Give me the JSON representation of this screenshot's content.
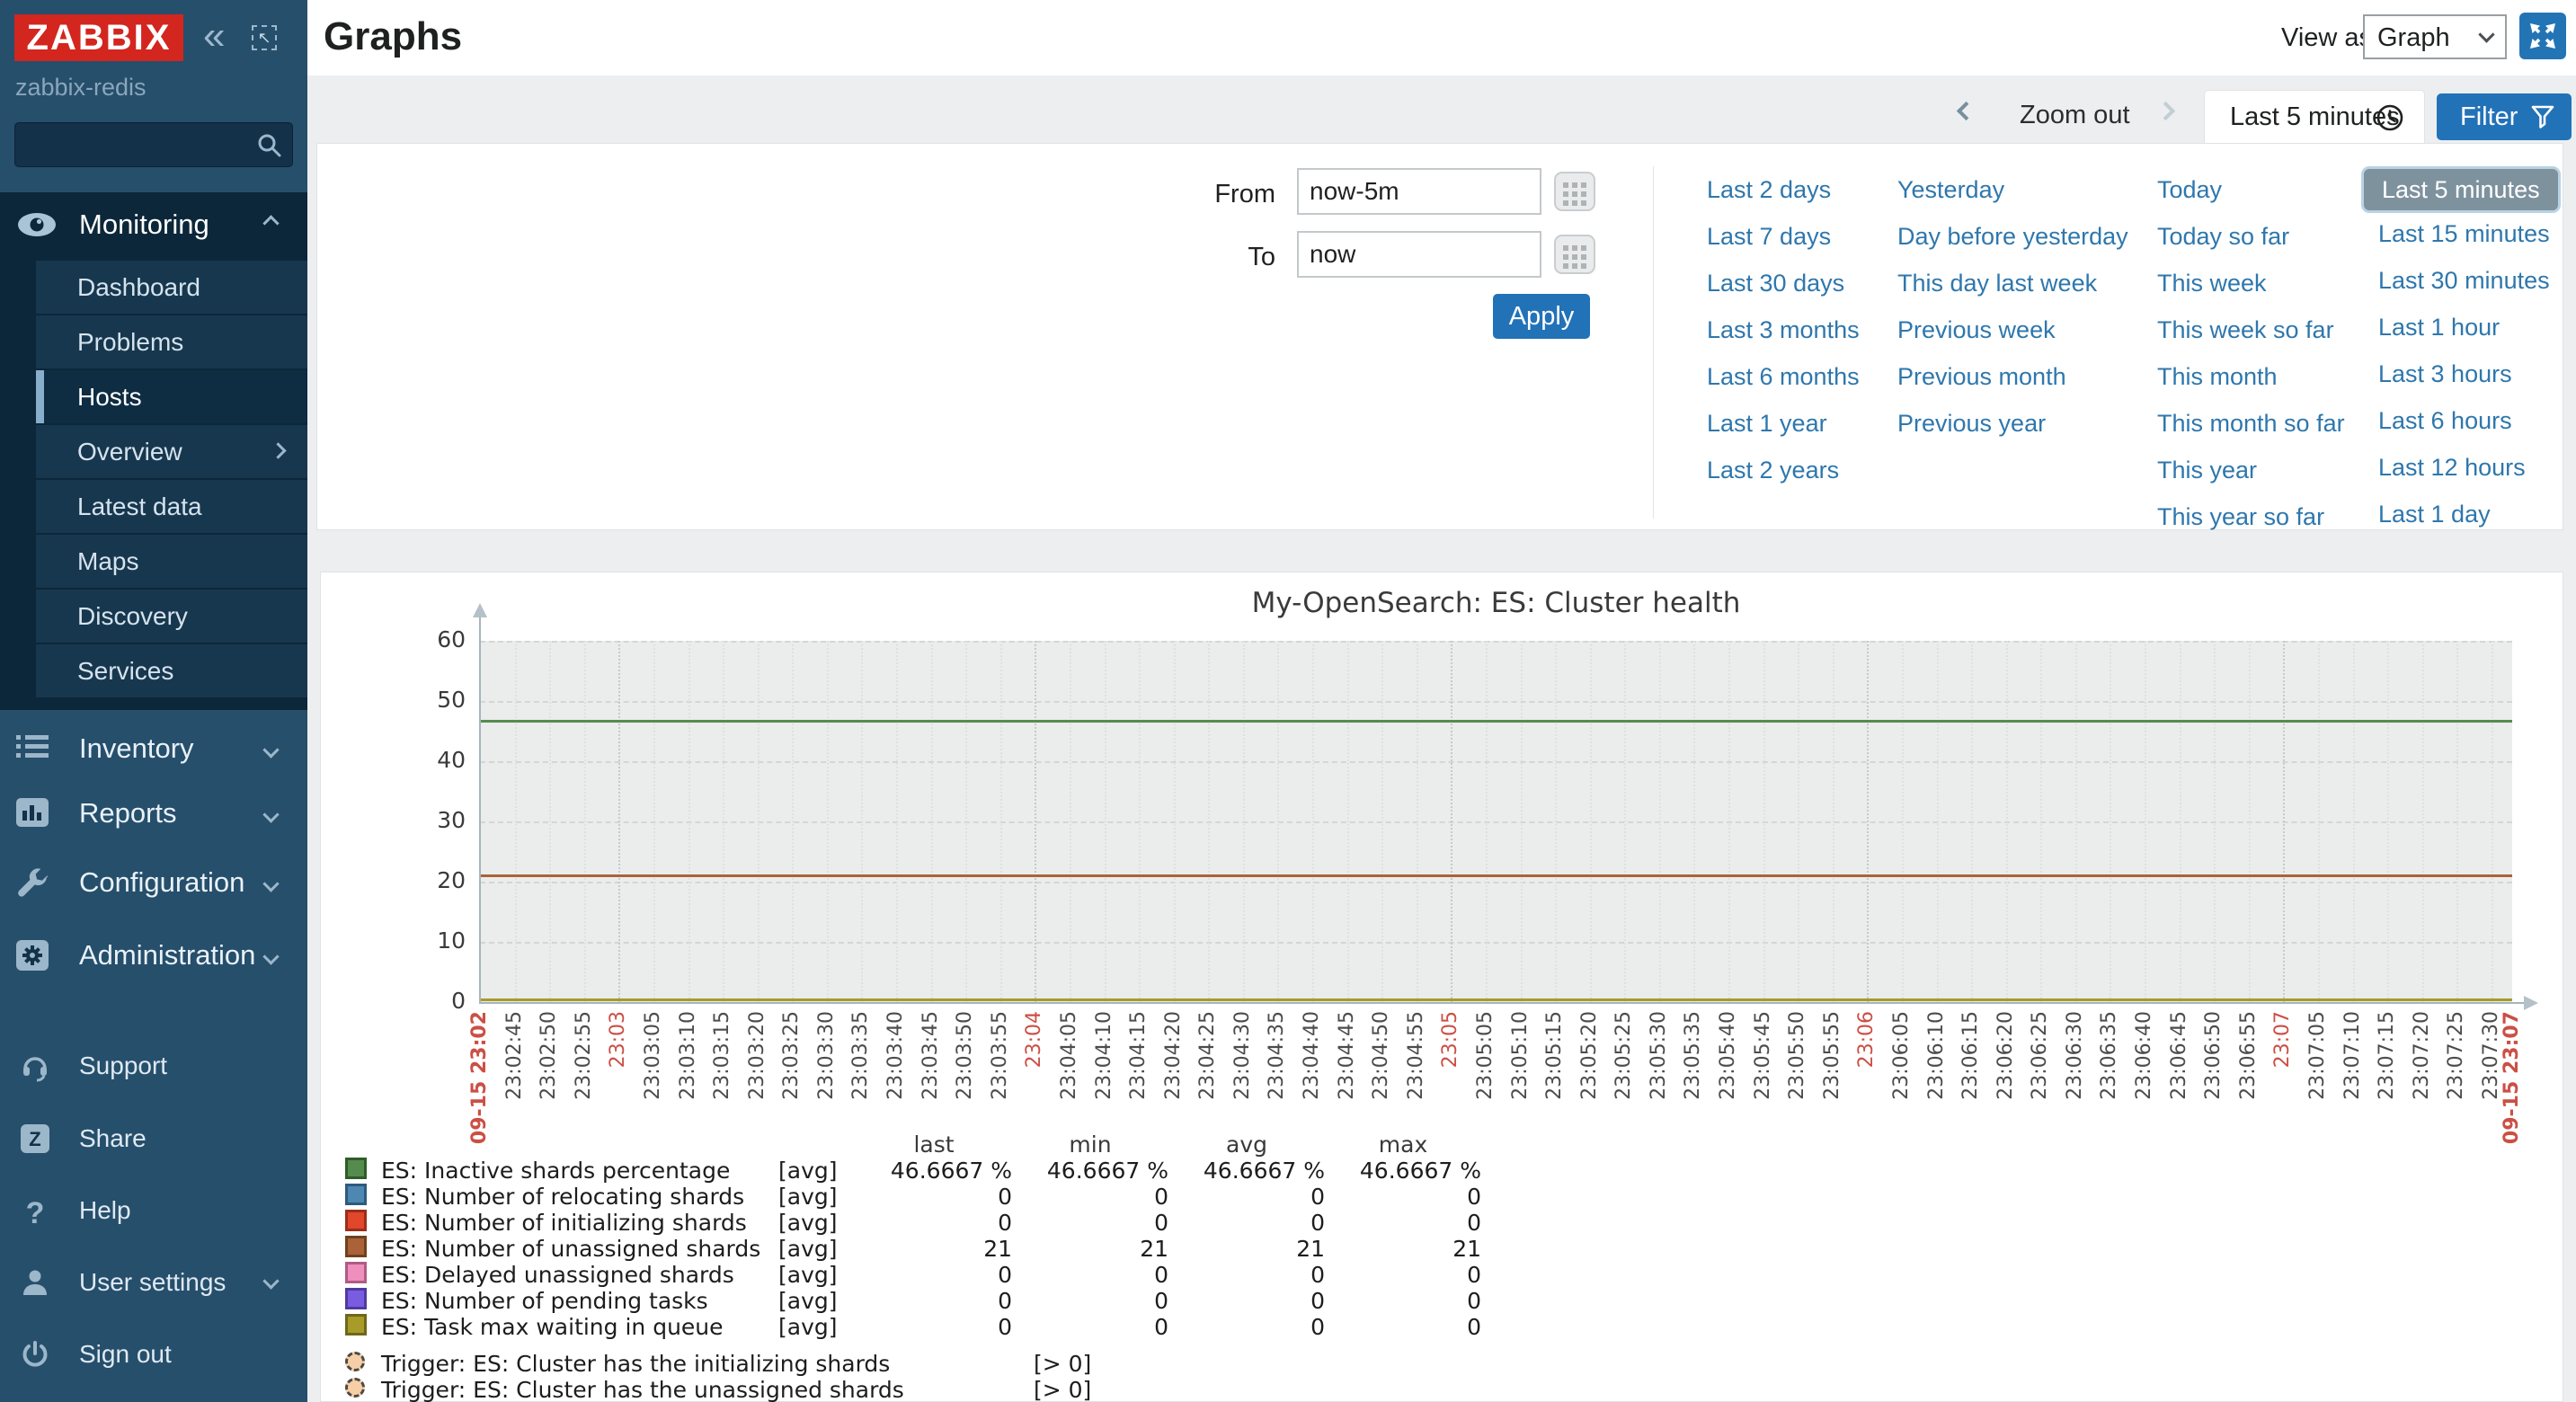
{
  "sidebar": {
    "logo_text": "ZABBIX",
    "host_label": "zabbix-redis",
    "search_value": "",
    "icons": {
      "collapse_glyph": "«",
      "popout_glyph": "↖",
      "help_glyph": "?"
    },
    "monitoring": {
      "label": "Monitoring",
      "items": [
        {
          "label": "Dashboard"
        },
        {
          "label": "Problems"
        },
        {
          "label": "Hosts",
          "active": true
        },
        {
          "label": "Overview",
          "has_children": true
        },
        {
          "label": "Latest data"
        },
        {
          "label": "Maps"
        },
        {
          "label": "Discovery"
        },
        {
          "label": "Services"
        }
      ]
    },
    "sections": [
      {
        "label": "Inventory"
      },
      {
        "label": "Reports"
      },
      {
        "label": "Configuration"
      },
      {
        "label": "Administration"
      }
    ],
    "footer": [
      {
        "label": "Support"
      },
      {
        "label": "Share"
      },
      {
        "label": "Help"
      },
      {
        "label": "User settings",
        "has_children": true
      },
      {
        "label": "Sign out"
      }
    ]
  },
  "header": {
    "title": "Graphs",
    "view_as_label": "View as",
    "view_as_value": "Graph"
  },
  "toolbar": {
    "zoom_out_label": "Zoom out",
    "range_tab_label": "Last 5 minutes",
    "filter_button_label": "Filter"
  },
  "time_form": {
    "from_label": "From",
    "from_value": "now-5m",
    "to_label": "To",
    "to_value": "now",
    "apply_label": "Apply"
  },
  "quick_ranges": {
    "selected": "Last 5 minutes",
    "columns": [
      [
        "Last 2 days",
        "Last 7 days",
        "Last 30 days",
        "Last 3 months",
        "Last 6 months",
        "Last 1 year",
        "Last 2 years"
      ],
      [
        "Yesterday",
        "Day before yesterday",
        "This day last week",
        "Previous week",
        "Previous month",
        "Previous year"
      ],
      [
        "Today",
        "Today so far",
        "This week",
        "This week so far",
        "This month",
        "This month so far",
        "This year",
        "This year so far"
      ],
      [
        "Last 5 minutes",
        "Last 15 minutes",
        "Last 30 minutes",
        "Last 1 hour",
        "Last 3 hours",
        "Last 6 hours",
        "Last 12 hours",
        "Last 1 day"
      ]
    ]
  },
  "chart_data": {
    "type": "line",
    "title": "My-OpenSearch: ES: Cluster health",
    "xlabel": "",
    "ylabel": "",
    "ylim": [
      0,
      60
    ],
    "yticks": [
      0,
      10,
      20,
      30,
      40,
      50,
      60
    ],
    "grid": true,
    "legend_position": "bottom",
    "legend_headers": [
      "last",
      "min",
      "avg",
      "max"
    ],
    "series": [
      {
        "name": "ES: Inactive shards percentage",
        "color": "#568b4e",
        "border": "#2e5c28",
        "fn": "[avg]",
        "value": 46.6667,
        "last": "46.6667 %",
        "min": "46.6667 %",
        "avg": "46.6667 %",
        "max": "46.6667 %"
      },
      {
        "name": "ES: Number of relocating shards",
        "color": "#4d87b2",
        "border": "#2e5a7c",
        "fn": "[avg]",
        "value": 0,
        "last": "0",
        "min": "0",
        "avg": "0",
        "max": "0"
      },
      {
        "name": "ES: Number of initializing shards",
        "color": "#e0472b",
        "border": "#9c2e1a",
        "fn": "[avg]",
        "value": 0,
        "last": "0",
        "min": "0",
        "avg": "0",
        "max": "0"
      },
      {
        "name": "ES: Number of unassigned shards",
        "color": "#ab6239",
        "border": "#6e421c",
        "fn": "[avg]",
        "value": 21,
        "last": "21",
        "min": "21",
        "avg": "21",
        "max": "21"
      },
      {
        "name": "ES: Delayed unassigned shards",
        "color": "#ef8fbe",
        "border": "#b05a84",
        "fn": "[avg]",
        "value": 0,
        "last": "0",
        "min": "0",
        "avg": "0",
        "max": "0"
      },
      {
        "name": "ES: Number of pending tasks",
        "color": "#7a5ce0",
        "border": "#4f3aa0",
        "fn": "[avg]",
        "value": 0,
        "last": "0",
        "min": "0",
        "avg": "0",
        "max": "0"
      },
      {
        "name": "ES: Task max waiting in queue",
        "color": "#a79b2a",
        "border": "#6f6718",
        "fn": "[avg]",
        "value": 0,
        "last": "0",
        "min": "0",
        "avg": "0",
        "max": "0"
      }
    ],
    "trigger_marker_color": "#f6cfa6",
    "triggers": [
      {
        "label": "Trigger: ES: Cluster has the initializing shards",
        "condition": "[> 0]"
      },
      {
        "label": "Trigger: ES: Cluster has the unassigned shards",
        "condition": "[> 0]"
      }
    ],
    "xticks": [
      {
        "t": 0,
        "label": "09-15 23:02",
        "red": true,
        "endpoint": true
      },
      {
        "t": 5,
        "label": "23:02:45"
      },
      {
        "t": 10,
        "label": "23:02:50"
      },
      {
        "t": 15,
        "label": "23:02:55"
      },
      {
        "t": 20,
        "label": "23:03",
        "red": true
      },
      {
        "t": 25,
        "label": "23:03:05"
      },
      {
        "t": 30,
        "label": "23:03:10"
      },
      {
        "t": 35,
        "label": "23:03:15"
      },
      {
        "t": 40,
        "label": "23:03:20"
      },
      {
        "t": 45,
        "label": "23:03:25"
      },
      {
        "t": 50,
        "label": "23:03:30"
      },
      {
        "t": 55,
        "label": "23:03:35"
      },
      {
        "t": 60,
        "label": "23:03:40"
      },
      {
        "t": 65,
        "label": "23:03:45"
      },
      {
        "t": 70,
        "label": "23:03:50"
      },
      {
        "t": 75,
        "label": "23:03:55"
      },
      {
        "t": 80,
        "label": "23:04",
        "red": true
      },
      {
        "t": 85,
        "label": "23:04:05"
      },
      {
        "t": 90,
        "label": "23:04:10"
      },
      {
        "t": 95,
        "label": "23:04:15"
      },
      {
        "t": 100,
        "label": "23:04:20"
      },
      {
        "t": 105,
        "label": "23:04:25"
      },
      {
        "t": 110,
        "label": "23:04:30"
      },
      {
        "t": 115,
        "label": "23:04:35"
      },
      {
        "t": 120,
        "label": "23:04:40"
      },
      {
        "t": 125,
        "label": "23:04:45"
      },
      {
        "t": 130,
        "label": "23:04:50"
      },
      {
        "t": 135,
        "label": "23:04:55"
      },
      {
        "t": 140,
        "label": "23:05",
        "red": true
      },
      {
        "t": 145,
        "label": "23:05:05"
      },
      {
        "t": 150,
        "label": "23:05:10"
      },
      {
        "t": 155,
        "label": "23:05:15"
      },
      {
        "t": 160,
        "label": "23:05:20"
      },
      {
        "t": 165,
        "label": "23:05:25"
      },
      {
        "t": 170,
        "label": "23:05:30"
      },
      {
        "t": 175,
        "label": "23:05:35"
      },
      {
        "t": 180,
        "label": "23:05:40"
      },
      {
        "t": 185,
        "label": "23:05:45"
      },
      {
        "t": 190,
        "label": "23:05:50"
      },
      {
        "t": 195,
        "label": "23:05:55"
      },
      {
        "t": 200,
        "label": "23:06",
        "red": true
      },
      {
        "t": 205,
        "label": "23:06:05"
      },
      {
        "t": 210,
        "label": "23:06:10"
      },
      {
        "t": 215,
        "label": "23:06:15"
      },
      {
        "t": 220,
        "label": "23:06:20"
      },
      {
        "t": 225,
        "label": "23:06:25"
      },
      {
        "t": 230,
        "label": "23:06:30"
      },
      {
        "t": 235,
        "label": "23:06:35"
      },
      {
        "t": 240,
        "label": "23:06:40"
      },
      {
        "t": 245,
        "label": "23:06:45"
      },
      {
        "t": 250,
        "label": "23:06:50"
      },
      {
        "t": 255,
        "label": "23:06:55"
      },
      {
        "t": 260,
        "label": "23:07",
        "red": true
      },
      {
        "t": 265,
        "label": "23:07:05"
      },
      {
        "t": 270,
        "label": "23:07:10"
      },
      {
        "t": 275,
        "label": "23:07:15"
      },
      {
        "t": 280,
        "label": "23:07:20"
      },
      {
        "t": 285,
        "label": "23:07:25"
      },
      {
        "t": 290,
        "label": "23:07:30"
      },
      {
        "t": 293,
        "label": "09-15 23:07",
        "red": true,
        "endpoint": true
      }
    ]
  }
}
